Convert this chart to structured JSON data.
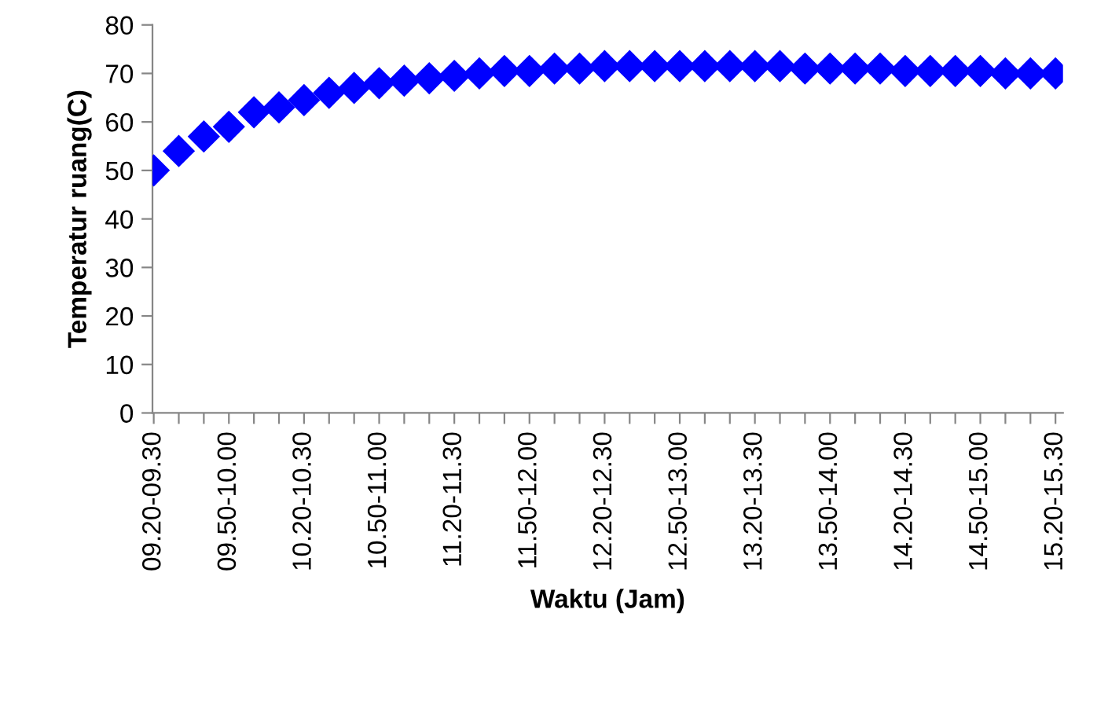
{
  "chart_data": {
    "type": "scatter",
    "xlabel": "Waktu (Jam)",
    "ylabel": "Temperatur ruang(C)",
    "categories": [
      "09.20-09.30",
      null,
      null,
      "09.50-10.00",
      null,
      null,
      "10.20-10.30",
      null,
      null,
      "10.50-11.00",
      null,
      null,
      "11.20-11.30",
      null,
      null,
      "11.50-12.00",
      null,
      null,
      "12.20-12.30",
      null,
      null,
      "12.50-13.00",
      null,
      null,
      "13.20-13.30",
      null,
      null,
      "13.50-14.00",
      null,
      null,
      "14.20-14.30",
      null,
      null,
      "14.50-15.00",
      null,
      null,
      "15.20-15.30"
    ],
    "series": [
      {
        "color": "#0000ff",
        "values": [
          50,
          54,
          57,
          59,
          62,
          63,
          64.5,
          66,
          67,
          68,
          68.5,
          69,
          69.5,
          70,
          70.5,
          70.5,
          71,
          71,
          71.5,
          71.5,
          71.5,
          71.5,
          71.5,
          71.5,
          71.5,
          71.5,
          71,
          71,
          71,
          71,
          70.5,
          70.5,
          70.5,
          70.5,
          70,
          70,
          70
        ]
      }
    ],
    "marker": "diamond",
    "ylim": [
      0,
      80
    ],
    "yticks": [
      0,
      10,
      20,
      30,
      40,
      50,
      60,
      70,
      80
    ],
    "grid": false
  }
}
